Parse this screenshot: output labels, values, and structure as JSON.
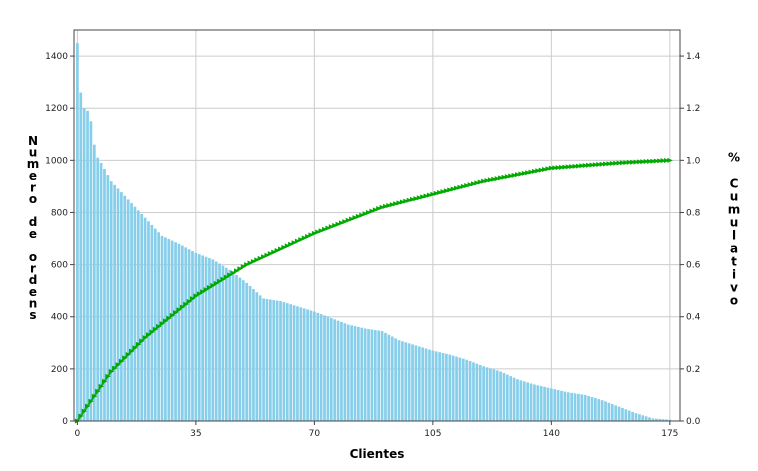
{
  "chart_data": {
    "type": "bar+line",
    "xlabel": "Clientes",
    "ylabel_left": "Numero de ordens",
    "ylabel_right": "% Cumulativo",
    "xticks": [
      0,
      35,
      70,
      105,
      140,
      175
    ],
    "yticks_left": [
      0,
      200,
      400,
      600,
      800,
      1000,
      1200,
      1400
    ],
    "yticks_right": [
      "0.0",
      "0.2",
      "0.4",
      "0.6",
      "0.8",
      "1.0",
      "1.2",
      "1.4"
    ],
    "xlim": [
      -1,
      178
    ],
    "ylim_left": [
      0,
      1500
    ],
    "ylim_right": [
      0,
      1.5
    ],
    "grid": true,
    "bar_color": "#87CEEB",
    "line_color": "#2ca02c",
    "marker_color": "#00aa00",
    "bar_series": {
      "name": "Numero de ordens",
      "anchors_x": [
        0,
        1,
        2,
        3,
        4,
        5,
        6,
        7,
        10,
        15,
        20,
        25,
        30,
        35,
        40,
        45,
        50,
        55,
        60,
        65,
        70,
        75,
        80,
        85,
        90,
        95,
        100,
        105,
        110,
        115,
        120,
        125,
        130,
        135,
        140,
        145,
        150,
        155,
        160,
        165,
        170,
        175
      ],
      "anchors_y": [
        1450,
        1260,
        1200,
        1190,
        1150,
        1060,
        1010,
        990,
        920,
        850,
        780,
        710,
        680,
        645,
        620,
        580,
        530,
        470,
        460,
        440,
        420,
        395,
        370,
        355,
        345,
        310,
        290,
        270,
        255,
        235,
        210,
        190,
        160,
        140,
        125,
        110,
        100,
        80,
        55,
        30,
        10,
        5
      ],
      "count": 176
    },
    "cumulative_series": {
      "name": "% Cumulativo",
      "x": [
        0,
        10,
        20,
        35,
        50,
        70,
        90,
        105,
        120,
        140,
        160,
        175
      ],
      "y": [
        0.0,
        0.19,
        0.32,
        0.48,
        0.6,
        0.72,
        0.82,
        0.87,
        0.92,
        0.97,
        0.99,
        1.0
      ]
    }
  }
}
